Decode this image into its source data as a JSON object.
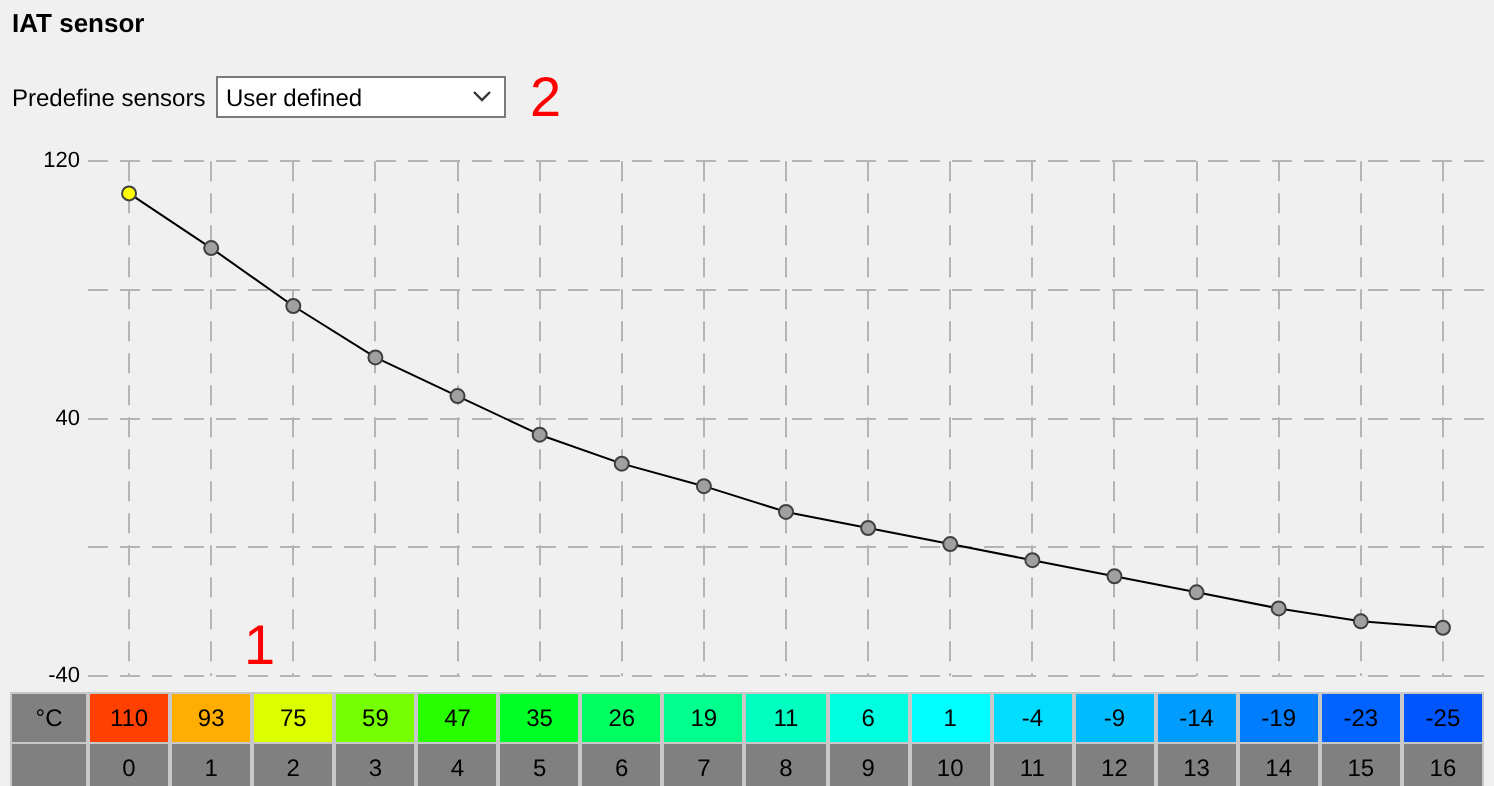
{
  "chart_data": {
    "type": "line",
    "title": "IAT sensor",
    "ylabel": "°C",
    "annotations": [
      "Predefine sensors",
      "User defined",
      "2",
      "1"
    ],
    "categories": [
      "0",
      "1",
      "2",
      "3",
      "4",
      "5",
      "6",
      "7",
      "8",
      "9",
      "10",
      "11",
      "12",
      "13",
      "14",
      "15",
      "16"
    ],
    "series": [
      {
        "color": "#000000",
        "colors": [
          "#ffff00",
          "#a0a0a0",
          "#a0a0a0",
          "#a0a0a0",
          "#a0a0a0",
          "#a0a0a0",
          "#a0a0a0",
          "#a0a0a0",
          "#a0a0a0",
          "#a0a0a0",
          "#a0a0a0",
          "#a0a0a0",
          "#a0a0a0",
          "#a0a0a0",
          "#a0a0a0",
          "#a0a0a0",
          "#a0a0a0"
        ],
        "values": [
          110,
          93,
          75,
          59,
          47,
          35,
          26,
          19,
          11,
          6,
          1,
          -4,
          -9,
          -14,
          -19,
          -23,
          -25
        ]
      }
    ],
    "ylim": [
      -40,
      120
    ],
    "yticks": [
      -40,
      {
        "value": 0,
        "label": null
      },
      40,
      {
        "value": 80,
        "label": null
      },
      120
    ],
    "grid": true,
    "marker": "circle",
    "line_style": "solid",
    "legend": false,
    "data_labels": true
  }
}
